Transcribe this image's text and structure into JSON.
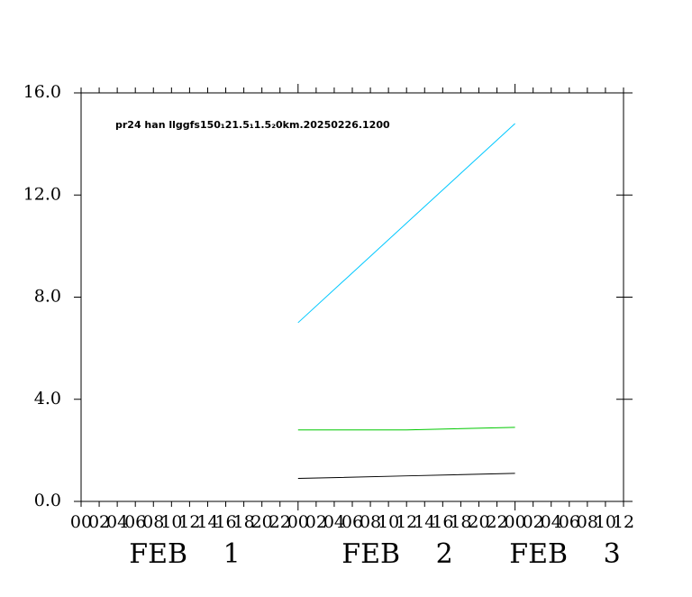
{
  "chart_data": {
    "type": "line",
    "title": "pr24 han llggfs150₁21.5₁1.5₂0km.20250226.1200",
    "x": [
      24,
      36,
      48
    ],
    "series": [
      {
        "color": "#00c8ff",
        "values": [
          7.0,
          10.9,
          14.8
        ]
      },
      {
        "color": "#00c800",
        "values": [
          2.8,
          2.8,
          2.9
        ]
      },
      {
        "color": "#000000",
        "values": [
          0.9,
          1.0,
          1.1
        ]
      }
    ],
    "xlim": [
      0,
      60
    ],
    "xticks": [
      {
        "value": 0,
        "label": "00"
      },
      {
        "value": 2,
        "label": "02"
      },
      {
        "value": 4,
        "label": "04"
      },
      {
        "value": 6,
        "label": "06"
      },
      {
        "value": 8,
        "label": "08"
      },
      {
        "value": 10,
        "label": "10"
      },
      {
        "value": 12,
        "label": "12"
      },
      {
        "value": 14,
        "label": "14"
      },
      {
        "value": 16,
        "label": "16"
      },
      {
        "value": 18,
        "label": "18"
      },
      {
        "value": 20,
        "label": "20"
      },
      {
        "value": 22,
        "label": "22"
      },
      {
        "value": 24,
        "label": "00"
      },
      {
        "value": 26,
        "label": "02"
      },
      {
        "value": 28,
        "label": "04"
      },
      {
        "value": 30,
        "label": "06"
      },
      {
        "value": 32,
        "label": "08"
      },
      {
        "value": 34,
        "label": "10"
      },
      {
        "value": 36,
        "label": "12"
      },
      {
        "value": 38,
        "label": "14"
      },
      {
        "value": 40,
        "label": "16"
      },
      {
        "value": 42,
        "label": "18"
      },
      {
        "value": 44,
        "label": "20"
      },
      {
        "value": 46,
        "label": "22"
      },
      {
        "value": 48,
        "label": "00"
      },
      {
        "value": 50,
        "label": "02"
      },
      {
        "value": 52,
        "label": "04"
      },
      {
        "value": 54,
        "label": "06"
      },
      {
        "value": 56,
        "label": "08"
      },
      {
        "value": 58,
        "label": "10"
      },
      {
        "value": 60,
        "label": "12"
      }
    ],
    "date_labels": [
      "FEB 1",
      "FEB 2",
      "FEB 3"
    ],
    "ylim": [
      0,
      16
    ],
    "yticks": [
      {
        "value": 0,
        "label": "0.0"
      },
      {
        "value": 4,
        "label": "4.0"
      },
      {
        "value": 8,
        "label": "8.0"
      },
      {
        "value": 12,
        "label": "12.0"
      },
      {
        "value": 16,
        "label": "16.0"
      }
    ]
  }
}
